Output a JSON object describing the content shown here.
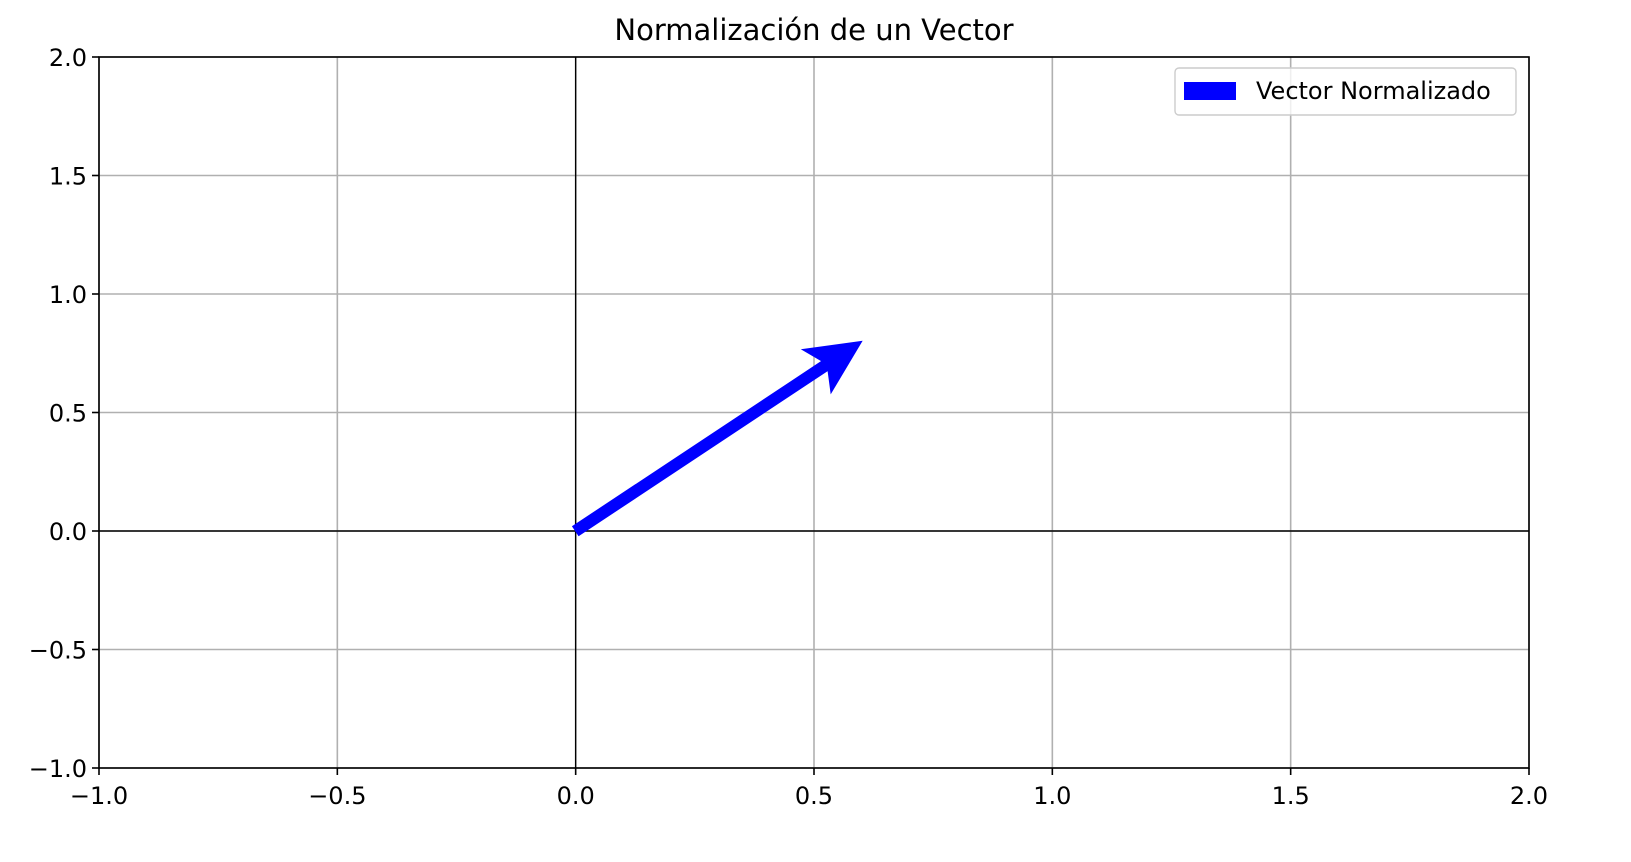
{
  "chart_data": {
    "type": "quiver",
    "title": "Normalización de un Vector",
    "xlabel": "",
    "ylabel": "",
    "xlim": [
      -1.0,
      2.0
    ],
    "ylim": [
      -1.0,
      2.0
    ],
    "grid": true,
    "legend_position": "top-right",
    "x_ticks": [
      -1.0,
      -0.5,
      0.0,
      0.5,
      1.0,
      1.5,
      2.0
    ],
    "x_tick_labels": [
      "−1.0",
      "−0.5",
      "0.0",
      "0.5",
      "1.0",
      "1.5",
      "2.0"
    ],
    "y_ticks": [
      -1.0,
      -0.5,
      0.0,
      0.5,
      1.0,
      1.5,
      2.0
    ],
    "y_tick_labels": [
      "−1.0",
      "−0.5",
      "0.0",
      "0.5",
      "1.0",
      "1.5",
      "2.0"
    ],
    "reference_lines": {
      "x": 0.0,
      "y": 0.0
    },
    "series": [
      {
        "name": "Vector Normalizado",
        "color": "#0000ff",
        "origin": [
          0.0,
          0.0
        ],
        "vector": [
          0.6,
          0.8
        ]
      }
    ]
  }
}
